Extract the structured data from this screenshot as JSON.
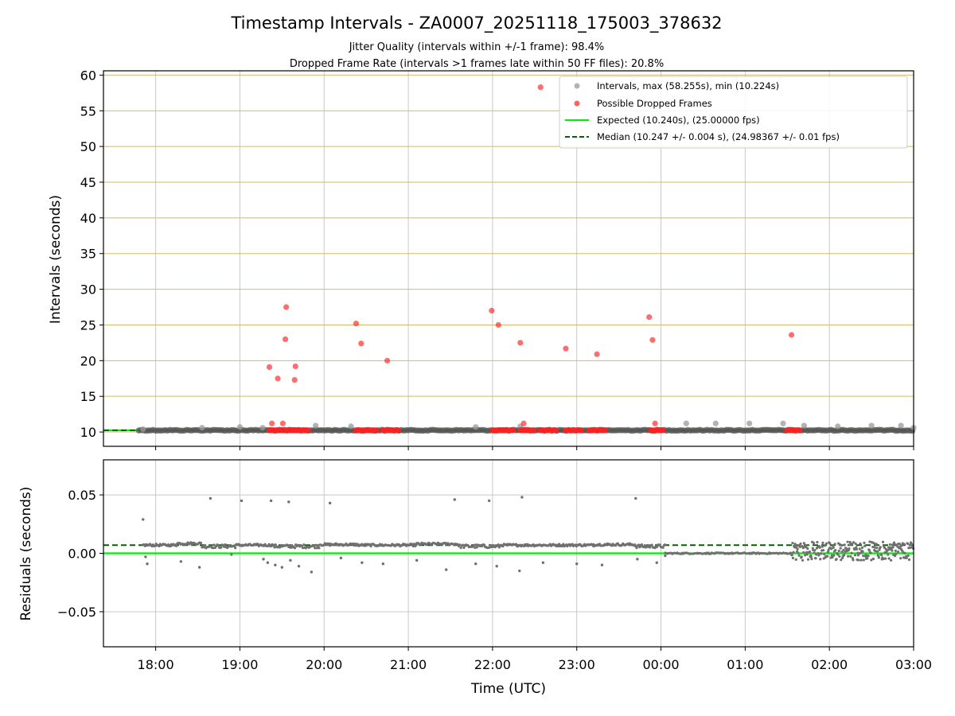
{
  "chart_data": {
    "title": "Timestamp Intervals - ZA0007_20251118_175003_378632",
    "subtitle_lines": [
      "Jitter Quality (intervals within +/-1 frame): 98.4%",
      "Dropped Frame Rate (intervals >1 frames late within 50 FF files): 20.8%"
    ],
    "xlabel": "Time (UTC)",
    "x_unit": "hours since 18:00 UTC",
    "xlim": [
      -0.62,
      9.0
    ],
    "x_ticks": [
      0,
      1,
      2,
      3,
      4,
      5,
      6,
      7,
      8,
      9
    ],
    "x_tick_labels": [
      "18:00",
      "19:00",
      "20:00",
      "21:00",
      "22:00",
      "23:00",
      "00:00",
      "01:00",
      "02:00",
      "03:00"
    ],
    "colors": {
      "intervals": "#999999",
      "dropped": "#ff2020",
      "expected": "#00ee00",
      "median": "#006400",
      "gold_grid": "#d2b96a",
      "grid": "#c8c8c8",
      "residual": "#707070"
    },
    "panels": [
      {
        "id": "intervals",
        "type": "scatter",
        "ylabel": "Intervals (seconds)",
        "ylim": [
          8,
          60.6
        ],
        "y_ticks": [
          10,
          15,
          20,
          25,
          30,
          35,
          40,
          45,
          50,
          55,
          60
        ],
        "y_tick_labels": [
          "10",
          "15",
          "20",
          "25",
          "30",
          "35",
          "40",
          "45",
          "50",
          "55",
          "60"
        ],
        "expected_value": 10.24,
        "median_value": 10.247,
        "legend": {
          "position": "top-right",
          "entries": [
            {
              "kind": "dot-gray",
              "label": "Intervals, max (58.255s), min (10.224s)"
            },
            {
              "kind": "dot-red",
              "label": "Possible Dropped Frames"
            },
            {
              "kind": "line-solid",
              "label": "Expected (10.240s), (25.00000 fps)"
            },
            {
              "kind": "line-dashed",
              "label": "Median (10.247 +/- 0.004 s), (24.98367 +/- 0.01 fps)"
            }
          ]
        },
        "outliers_gray": [
          [
            -0.15,
            10.4
          ],
          [
            0.55,
            10.6
          ],
          [
            1.0,
            10.7
          ],
          [
            1.27,
            10.6
          ],
          [
            1.9,
            10.9
          ],
          [
            2.32,
            10.8
          ],
          [
            3.8,
            10.7
          ],
          [
            4.33,
            10.8
          ],
          [
            6.3,
            11.2
          ],
          [
            6.65,
            11.2
          ],
          [
            7.05,
            11.2
          ],
          [
            7.45,
            11.2
          ],
          [
            7.7,
            10.9
          ],
          [
            8.1,
            10.8
          ],
          [
            8.5,
            10.9
          ],
          [
            8.85,
            10.9
          ],
          [
            9.0,
            10.6
          ]
        ],
        "dropped_high": [
          [
            1.35,
            19.1
          ],
          [
            1.38,
            11.2
          ],
          [
            1.45,
            17.5
          ],
          [
            1.51,
            11.2
          ],
          [
            1.54,
            23.0
          ],
          [
            1.55,
            27.5
          ],
          [
            1.65,
            17.3
          ],
          [
            1.66,
            19.2
          ],
          [
            2.38,
            25.2
          ],
          [
            2.44,
            22.4
          ],
          [
            2.75,
            20.0
          ],
          [
            3.99,
            27.0
          ],
          [
            4.07,
            25.0
          ],
          [
            4.33,
            22.5
          ],
          [
            4.37,
            11.2
          ],
          [
            4.57,
            58.3
          ],
          [
            4.87,
            21.7
          ],
          [
            5.24,
            20.9
          ],
          [
            5.86,
            26.1
          ],
          [
            5.9,
            22.9
          ],
          [
            5.93,
            11.2
          ],
          [
            7.55,
            23.6
          ]
        ],
        "dropped_clusters": [
          [
            1.35,
            1.82
          ],
          [
            2.38,
            2.62
          ],
          [
            2.7,
            2.9
          ],
          [
            4.0,
            4.24
          ],
          [
            4.33,
            4.5
          ],
          [
            4.57,
            4.75
          ],
          [
            4.87,
            5.05
          ],
          [
            5.15,
            5.33
          ],
          [
            5.88,
            6.02
          ],
          [
            7.5,
            7.65
          ]
        ],
        "dropped_cluster_value": 10.24
      },
      {
        "id": "residuals",
        "type": "scatter",
        "ylabel": "Residuals (seconds)",
        "ylim": [
          -0.08,
          0.08
        ],
        "y_ticks": [
          0.05,
          0.0,
          -0.05
        ],
        "y_tick_labels": [
          "0.05",
          "0.00",
          "−0.05"
        ],
        "expected_value": 0.0,
        "median_value": 0.007,
        "points_high": [
          [
            -0.15,
            0.029
          ],
          [
            0.65,
            0.047
          ],
          [
            1.02,
            0.045
          ],
          [
            1.37,
            0.045
          ],
          [
            1.58,
            0.044
          ],
          [
            2.07,
            0.043
          ],
          [
            3.55,
            0.046
          ],
          [
            3.96,
            0.045
          ],
          [
            4.35,
            0.048
          ],
          [
            5.7,
            0.047
          ]
        ],
        "points_low": [
          [
            -0.12,
            -0.003
          ],
          [
            -0.1,
            -0.009
          ],
          [
            0.3,
            -0.007
          ],
          [
            0.52,
            -0.012
          ],
          [
            0.9,
            -0.001
          ],
          [
            1.28,
            -0.005
          ],
          [
            1.33,
            -0.008
          ],
          [
            1.42,
            -0.01
          ],
          [
            1.5,
            -0.012
          ],
          [
            1.6,
            -0.006
          ],
          [
            1.7,
            -0.011
          ],
          [
            1.85,
            -0.016
          ],
          [
            2.2,
            -0.004
          ],
          [
            2.45,
            -0.008
          ],
          [
            2.7,
            -0.009
          ],
          [
            3.1,
            -0.006
          ],
          [
            3.45,
            -0.014
          ],
          [
            3.8,
            -0.009
          ],
          [
            4.05,
            -0.011
          ],
          [
            4.32,
            -0.015
          ],
          [
            4.6,
            -0.008
          ],
          [
            5.0,
            -0.009
          ],
          [
            5.3,
            -0.01
          ],
          [
            5.72,
            -0.005
          ],
          [
            5.95,
            -0.008
          ],
          [
            6.05,
            -0.002
          ]
        ],
        "bands": [
          {
            "from": -0.15,
            "to": 0.25,
            "level": 0.007,
            "spread": 0.002
          },
          {
            "from": 0.25,
            "to": 0.55,
            "level": 0.0085,
            "spread": 0.002
          },
          {
            "from": 0.55,
            "to": 0.95,
            "level": 0.006,
            "spread": 0.003
          },
          {
            "from": 0.95,
            "to": 1.4,
            "level": 0.007,
            "spread": 0.002
          },
          {
            "from": 1.4,
            "to": 1.95,
            "level": 0.006,
            "spread": 0.003
          },
          {
            "from": 1.95,
            "to": 2.4,
            "level": 0.0075,
            "spread": 0.002
          },
          {
            "from": 2.4,
            "to": 3.1,
            "level": 0.007,
            "spread": 0.002
          },
          {
            "from": 3.1,
            "to": 3.6,
            "level": 0.008,
            "spread": 0.002
          },
          {
            "from": 3.6,
            "to": 4.1,
            "level": 0.006,
            "spread": 0.003
          },
          {
            "from": 4.1,
            "to": 4.6,
            "level": 0.007,
            "spread": 0.002
          },
          {
            "from": 4.6,
            "to": 5.2,
            "level": 0.007,
            "spread": 0.002
          },
          {
            "from": 5.2,
            "to": 5.7,
            "level": 0.0075,
            "spread": 0.002
          },
          {
            "from": 5.7,
            "to": 6.05,
            "level": 0.006,
            "spread": 0.003
          }
        ],
        "flat_band": {
          "from": 6.05,
          "to": 7.55,
          "level": 0.0,
          "spread": 0.0012
        },
        "noisy_band": {
          "from": 7.55,
          "to": 9.0,
          "level": 0.003,
          "spread": 0.008
        }
      }
    ]
  }
}
